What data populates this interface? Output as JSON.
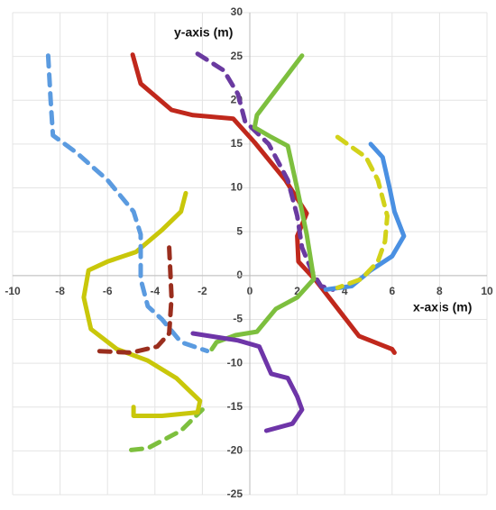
{
  "chart_data": {
    "type": "line",
    "xlabel": "x-axis (m)",
    "ylabel": "y-axis (m)",
    "xlim": [
      -10,
      10
    ],
    "xticks": [
      -10,
      -8,
      -6,
      -4,
      -2,
      0,
      2,
      4,
      6,
      8,
      10
    ],
    "ylim": [
      -25,
      30
    ],
    "yticks": [
      -25,
      -20,
      -15,
      -10,
      -5,
      0,
      5,
      10,
      15,
      20,
      25,
      30
    ],
    "grid": true,
    "series": [
      {
        "color": "#c0281c",
        "dashed": false,
        "x": [
          -4.94,
          -4.6,
          -3.3,
          -2.4,
          -0.7,
          0.2,
          1.5,
          2.4,
          2.0,
          2.05,
          2.8,
          4.6,
          6.0,
          6.1
        ],
        "values": [
          25.2,
          21.9,
          18.9,
          18.3,
          17.9,
          15.2,
          10.9,
          7.1,
          4.5,
          1.6,
          -0.6,
          -6.9,
          -8.4,
          -8.8
        ]
      },
      {
        "color": "#6a3aa0",
        "dashed": true,
        "x": [
          -2.2,
          -1.1,
          -0.5,
          -0.2,
          0.8,
          1.6,
          2.0,
          2.2,
          2.6,
          3.0,
          3.5
        ],
        "values": [
          25.3,
          23.4,
          20.7,
          17.6,
          15.0,
          10.9,
          6.8,
          3.2,
          0.6,
          -1.2,
          -1.6
        ]
      },
      {
        "color": "#7dbf3e",
        "dashed": false,
        "x": [
          2.2,
          0.3,
          0.2,
          0.9,
          1.6,
          2.0,
          2.4,
          2.7,
          2.0,
          1.1,
          0.3,
          -0.6,
          -1.4,
          -1.6
        ],
        "values": [
          25.1,
          18.3,
          16.9,
          15.8,
          14.8,
          9.9,
          4.7,
          -0.4,
          -2.5,
          -3.8,
          -6.4,
          -6.8,
          -7.6,
          -8.4
        ]
      },
      {
        "color": "#7dbf3e",
        "dashed": true,
        "x": [
          -5.0,
          -4.3,
          -2.9,
          -2.0
        ],
        "values": [
          -19.9,
          -19.7,
          -17.7,
          -15.3
        ]
      },
      {
        "color": "#c9c70a",
        "dashed": false,
        "x": [
          -2.7,
          -2.9,
          -3.7,
          -4.8,
          -6.0,
          -6.8,
          -7.0,
          -6.7,
          -5.6,
          -4.3,
          -3.1,
          -2.1,
          -2.2,
          -3.7,
          -4.9,
          -4.9
        ],
        "values": [
          9.4,
          7.3,
          5.2,
          2.7,
          1.6,
          0.6,
          -2.5,
          -6.1,
          -8.4,
          -9.7,
          -11.7,
          -14.3,
          -15.6,
          -16.0,
          -16.0,
          -15.0
        ]
      },
      {
        "color": "#5b9be0",
        "dashed": true,
        "x": [
          -8.5,
          -8.4,
          -8.3,
          -7.3,
          -6.0,
          -4.9,
          -4.6,
          -4.6,
          -4.3,
          -3.7,
          -2.9,
          -1.8
        ],
        "values": [
          25.1,
          20.1,
          16.0,
          14.0,
          10.9,
          7.3,
          4.7,
          -0.4,
          -3.5,
          -5.0,
          -7.6,
          -8.6
        ]
      },
      {
        "color": "#9a2e1e",
        "dashed": true,
        "x": [
          -3.4,
          -3.3,
          -3.4,
          -3.9,
          -5.0,
          -6.5
        ],
        "values": [
          3.2,
          -2.5,
          -6.6,
          -8.1,
          -8.8,
          -8.6
        ]
      },
      {
        "color": "#6e35a8",
        "dashed": false,
        "x": [
          -2.4,
          -0.5,
          0.4,
          0.9,
          1.6,
          2.0,
          2.2,
          1.8,
          0.7
        ],
        "values": [
          -6.6,
          -7.4,
          -8.1,
          -11.2,
          -11.7,
          -13.8,
          -15.3,
          -16.9,
          -17.7
        ]
      },
      {
        "color": "#4a90e2",
        "dashed": false,
        "x": [
          5.1,
          5.6,
          5.9,
          6.1,
          6.5,
          6.0,
          5.1,
          4.3,
          3.2
        ],
        "values": [
          15.0,
          13.5,
          9.9,
          7.3,
          4.5,
          2.2,
          0.6,
          -1.2,
          -1.6
        ]
      },
      {
        "color": "#d2d21a",
        "dashed": true,
        "x": [
          3.7,
          4.9,
          5.4,
          5.8,
          5.7,
          5.4,
          4.7,
          3.7
        ],
        "values": [
          15.8,
          13.5,
          10.9,
          6.8,
          3.9,
          1.6,
          -0.4,
          -1.4
        ]
      }
    ]
  }
}
